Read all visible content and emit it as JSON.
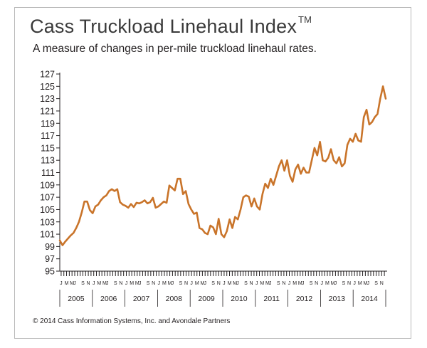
{
  "title": "Cass Truckload Linehaul Index",
  "title_mark": "TM",
  "subtitle": "A measure of changes in per-mile truckload linehaul rates.",
  "footer": "© 2014 Cass Information Systems, Inc. and Avondale Partners",
  "colors": {
    "line": "#c9742a",
    "axis": "#231f20",
    "frame": "#b9b9b9"
  },
  "chart_data": {
    "type": "line",
    "ylim": [
      95,
      127
    ],
    "y_ticks": [
      95,
      97,
      99,
      101,
      103,
      105,
      107,
      109,
      111,
      113,
      115,
      117,
      119,
      121,
      123,
      125,
      127
    ],
    "years": [
      "2005",
      "2006",
      "2007",
      "2008",
      "2009",
      "2010",
      "2011",
      "2012",
      "2013",
      "2014"
    ],
    "month_labels": [
      "J",
      "M",
      "M",
      "J",
      "S",
      "N"
    ],
    "series": [
      {
        "values": [
          100.0,
          99.2,
          99.8,
          100.3,
          100.8,
          101.2,
          102.0,
          103.0,
          104.5,
          106.3,
          106.3,
          104.9,
          104.4,
          105.5,
          105.8,
          106.5,
          107.0,
          107.3,
          108.0,
          108.3,
          108.0,
          108.3,
          106.2,
          105.8,
          105.6,
          105.3,
          105.9,
          105.4,
          106.1,
          106.0,
          106.2,
          106.5,
          106.0,
          106.2,
          106.9,
          105.3,
          105.5,
          105.9,
          106.3,
          106.1,
          108.9,
          108.5,
          108.1,
          110.0,
          110.0,
          107.5,
          108.0,
          105.9,
          105.0,
          104.3,
          104.5,
          102.0,
          101.8,
          101.2,
          101.0,
          102.4,
          102.1,
          101.0,
          103.5,
          101.0,
          100.5,
          101.5,
          103.4,
          102.0,
          103.8,
          103.4,
          105.0,
          107.0,
          107.3,
          107.1,
          105.5,
          106.8,
          105.5,
          105.0,
          107.5,
          109.2,
          108.5,
          110.0,
          109.0,
          110.5,
          112.0,
          113.0,
          111.3,
          113.0,
          110.5,
          109.5,
          111.5,
          112.3,
          110.8,
          111.8,
          111.0,
          111.0,
          113.0,
          115.0,
          113.8,
          116.0,
          113.0,
          112.8,
          113.4,
          114.8,
          113.0,
          112.5,
          113.5,
          112.0,
          112.5,
          115.5,
          116.5,
          116.0,
          117.3,
          116.2,
          116.0,
          120.0,
          121.2,
          118.8,
          119.2,
          120.0,
          120.5,
          123.0,
          125.0,
          123.0
        ]
      }
    ]
  }
}
